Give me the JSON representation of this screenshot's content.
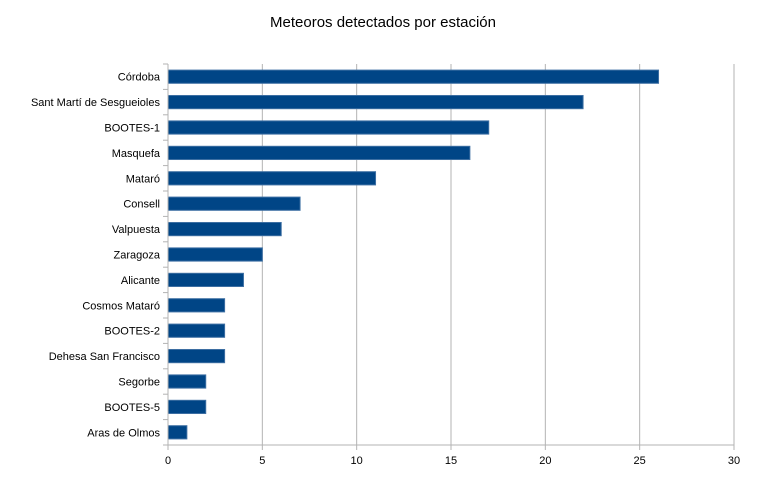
{
  "chart_data": {
    "type": "bar",
    "orientation": "horizontal",
    "title": "Meteoros detectados por estación",
    "xlabel": "",
    "ylabel": "",
    "categories": [
      "Córdoba",
      "Sant Martí de Sesgueioles",
      "BOOTES-1",
      "Masquefa",
      "Mataró",
      "Consell",
      "Valpuesta",
      "Zaragoza",
      "Alicante",
      "Cosmos Mataró",
      "BOOTES-2",
      "Dehesa San Francisco",
      "Segorbe",
      "BOOTES-5",
      "Aras de Olmos"
    ],
    "values": [
      26,
      22,
      17,
      16,
      11,
      7,
      6,
      5,
      4,
      3,
      3,
      3,
      2,
      2,
      1
    ],
    "xlim": [
      0,
      30
    ],
    "xticks": [
      "0",
      "5",
      "10",
      "15",
      "20",
      "25",
      "30"
    ],
    "grid": true,
    "legend": "none",
    "bar_color": "#004586"
  }
}
